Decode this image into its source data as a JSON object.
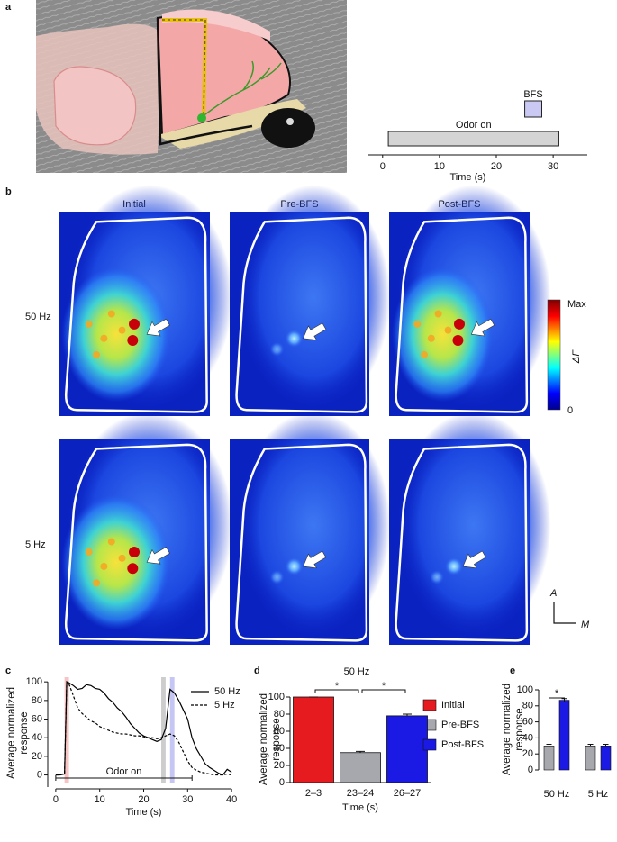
{
  "panel_labels": [
    "a",
    "b",
    "c",
    "d",
    "e"
  ],
  "imaging": {
    "columns": [
      "Initial",
      "Pre-BFS",
      "Post-BFS"
    ],
    "rows": [
      "50 Hz",
      "5 Hz"
    ],
    "colorbar": {
      "max_label": "Max",
      "min_label": "0",
      "label": "ΔF"
    },
    "orientation": {
      "anterior": "A",
      "medial": "M"
    }
  },
  "chart_data": [
    {
      "type": "timeline",
      "xlabel": "Time (s)",
      "xlim": [
        -2.5,
        36
      ],
      "xticks": [
        0,
        10,
        20,
        30
      ],
      "events": [
        {
          "label": "Odor on",
          "range": [
            1,
            31
          ],
          "color": "#d4d4d4"
        },
        {
          "label": "BFS",
          "range": [
            25,
            28
          ],
          "color": "#c9c9f4"
        }
      ]
    },
    {
      "type": "line",
      "xlabel": "Time (s)",
      "ylabel": "Average normalized response",
      "xlim": [
        -1,
        41
      ],
      "ylim": [
        -13,
        105
      ],
      "xticks": [
        0,
        10,
        20,
        30,
        40
      ],
      "yticks": [
        0,
        20,
        40,
        60,
        80,
        100
      ],
      "x": [
        0,
        1,
        2,
        2.5,
        3,
        4,
        5,
        6,
        7,
        8,
        9,
        10,
        11,
        12,
        13,
        14,
        15,
        16,
        17,
        18,
        19,
        20,
        21,
        22,
        23,
        24,
        25,
        26,
        27,
        28,
        29,
        30,
        31,
        32,
        33,
        34,
        35,
        36,
        37,
        38,
        39,
        40
      ],
      "series": [
        {
          "name": "50 Hz",
          "color": "#000000",
          "dash": "solid",
          "values": [
            0,
            0,
            1,
            100,
            99,
            96,
            92,
            93,
            97,
            96,
            93,
            92,
            88,
            82,
            78,
            72,
            68,
            62,
            55,
            50,
            45,
            42,
            40,
            38,
            36,
            38,
            50,
            92,
            88,
            80,
            70,
            60,
            40,
            28,
            20,
            12,
            8,
            5,
            2,
            0,
            6,
            3
          ]
        },
        {
          "name": "5 Hz",
          "color": "#000000",
          "dash": "dashed",
          "values": [
            0,
            0,
            2,
            100,
            98,
            85,
            72,
            66,
            62,
            58,
            56,
            52,
            50,
            48,
            46,
            45,
            44,
            44,
            43,
            42,
            42,
            41,
            40,
            40,
            39,
            40,
            42,
            44,
            42,
            35,
            25,
            15,
            8,
            5,
            3,
            2,
            1,
            0,
            0,
            0,
            1,
            0
          ]
        }
      ],
      "bands": [
        {
          "range": [
            2,
            3
          ],
          "color": "#f6b9b9"
        },
        {
          "range": [
            24,
            25
          ],
          "color": "#c4c4c4"
        },
        {
          "range": [
            26,
            27
          ],
          "color": "#bcbcf2"
        }
      ],
      "annotation": {
        "label": "Odor on",
        "range": [
          0,
          31
        ]
      }
    },
    {
      "type": "bar",
      "title": "50 Hz",
      "xlabel": "Time (s)",
      "ylabel": "Average normalized response",
      "categories": [
        "2–3",
        "23–24",
        "26–27"
      ],
      "values": [
        100,
        35,
        78
      ],
      "errors": [
        0,
        1.5,
        2
      ],
      "colors": [
        "#e51b1f",
        "#a7a7ae",
        "#1a1ae4"
      ],
      "legend": [
        "Initial",
        "Pre-BFS",
        "Post-BFS"
      ],
      "ylim": [
        0,
        100
      ],
      "yticks": [
        0,
        20,
        40,
        60,
        80,
        100
      ],
      "significance": [
        {
          "pair": [
            0,
            1
          ],
          "label": "*"
        },
        {
          "pair": [
            1,
            2
          ],
          "label": "*"
        }
      ]
    },
    {
      "type": "grouped_bar",
      "ylabel": "Average normalized response",
      "categories": [
        "50 Hz",
        "5 Hz"
      ],
      "series": [
        {
          "color": "#a7a7ae",
          "values": [
            30,
            30
          ],
          "errors": [
            2,
            2
          ]
        },
        {
          "color": "#1a1ae4",
          "values": [
            87,
            30
          ],
          "errors": [
            2,
            2
          ]
        }
      ],
      "ylim": [
        0,
        100
      ],
      "yticks": [
        0,
        20,
        40,
        60,
        80,
        100
      ],
      "significance": [
        {
          "category": 0,
          "label": "*"
        }
      ]
    }
  ]
}
